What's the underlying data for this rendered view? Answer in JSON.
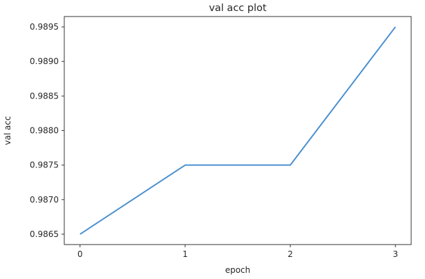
{
  "chart_data": {
    "type": "line",
    "title": "val acc plot",
    "xlabel": "epoch",
    "ylabel": "val acc",
    "x": [
      0,
      1,
      2,
      3
    ],
    "series": [
      {
        "name": "val acc",
        "values": [
          0.9865,
          0.9875,
          0.9875,
          0.9895
        ]
      }
    ],
    "xticks": [
      0,
      1,
      2,
      3
    ],
    "xtick_labels": [
      "0",
      "1",
      "2",
      "3"
    ],
    "yticks": [
      0.9865,
      0.987,
      0.9875,
      0.988,
      0.9885,
      0.989,
      0.9895
    ],
    "ytick_labels": [
      "0.9865",
      "0.9870",
      "0.9875",
      "0.9880",
      "0.9885",
      "0.9890",
      "0.9895"
    ],
    "xlim": [
      -0.15,
      3.15
    ],
    "ylim": [
      0.98635,
      0.98965
    ],
    "grid": false,
    "legend": "none",
    "line_color": "#4a90cf",
    "line_width": 2,
    "background": "#ffffff",
    "text_color": "#262626",
    "spine_color": "#333333"
  }
}
